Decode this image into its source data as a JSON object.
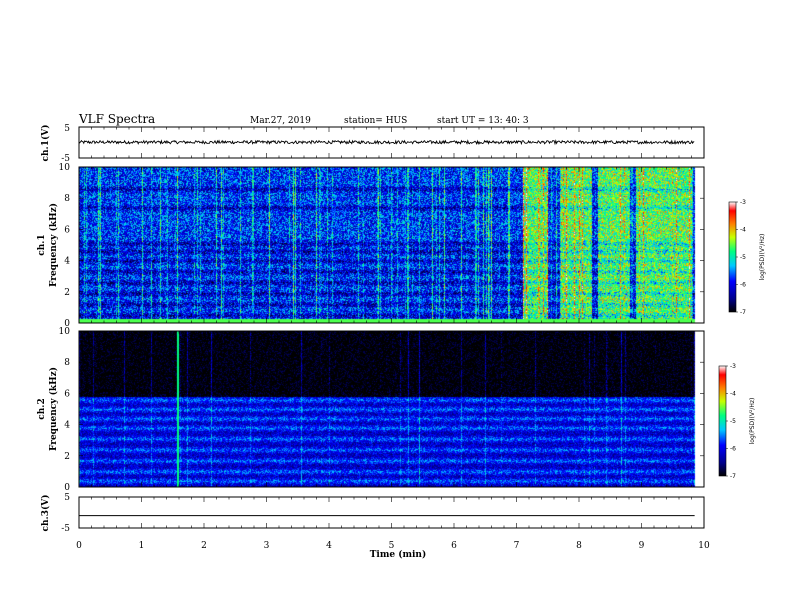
{
  "header": {
    "title": "VLF Spectra",
    "date": "Mar.27, 2019",
    "station": "station= HUS",
    "start": "start  UT =   13: 40: 3"
  },
  "colors": {
    "background": "#ffffff",
    "axes": "#000000",
    "spectrogram_floor": "#000008"
  },
  "chart_data": [
    {
      "type": "line",
      "panel": "ch.1 waveform",
      "ylabel": "ch.1(V)",
      "ylim": [
        -5,
        5
      ],
      "yticks": [
        -5,
        5
      ],
      "xlim": [
        0,
        10
      ],
      "x": [
        0,
        1,
        2,
        3,
        4,
        5,
        6,
        7,
        8,
        9,
        9.85
      ],
      "y": [
        0.1,
        0.1,
        0.1,
        0.1,
        0.1,
        0.1,
        0.1,
        0.1,
        0.1,
        0.1,
        0.1
      ],
      "note_band_amplitude": 0.5
    },
    {
      "type": "heatmap",
      "panel": "ch.1 spectrogram",
      "ylabel": "Frequency  (kHz)",
      "channel_label": "ch.1",
      "ylim": [
        0,
        10
      ],
      "yticks": [
        0,
        2,
        4,
        6,
        8,
        10
      ],
      "xlim": [
        0,
        10
      ],
      "data_extent_x": [
        0,
        9.85
      ],
      "colorbar": {
        "label": "log(PSD)(V²/Hz)",
        "range": [
          -7,
          -3
        ],
        "ticks": [
          -7,
          -6,
          -5,
          -4,
          -3
        ]
      },
      "horizontal_bands_khz": [
        0.5,
        1.2,
        1.9,
        2.6,
        3.3,
        4.0,
        4.6,
        5.1,
        7.4,
        8.6
      ],
      "high_activity_intervals_min": [
        [
          7.1,
          7.5
        ],
        [
          7.7,
          8.2
        ],
        [
          8.3,
          8.8
        ],
        [
          8.9,
          9.8
        ]
      ],
      "base_level": -5.8
    },
    {
      "type": "heatmap",
      "panel": "ch.2 spectrogram",
      "ylabel": "Frequency  (kHz)",
      "channel_label": "ch.2",
      "ylim": [
        0,
        10
      ],
      "yticks": [
        0,
        2,
        4,
        6,
        8,
        10
      ],
      "xlim": [
        0,
        10
      ],
      "data_extent_x": [
        0,
        9.85
      ],
      "colorbar": {
        "label": "log(PSD)(V²/Hz)",
        "range": [
          -7,
          -3
        ],
        "ticks": [
          -7,
          -6,
          -5,
          -4,
          -3
        ]
      },
      "horizontal_bands_khz": [
        0.4,
        1.0,
        1.7,
        2.4,
        3.1,
        3.8,
        4.4,
        5.0,
        5.6
      ],
      "noise_ceiling_khz": 5.8,
      "bright_sferic_time_min": 1.58,
      "base_level": -6.8
    },
    {
      "type": "line",
      "panel": "ch.3 waveform",
      "ylabel": "ch.3(V)",
      "ylim": [
        -5,
        5
      ],
      "yticks": [
        -5,
        5
      ],
      "xlim": [
        0,
        10
      ],
      "x": [
        0,
        9.85
      ],
      "y": [
        -1,
        -1
      ],
      "xlabel": "Time  (min)",
      "xticks": [
        0,
        1,
        2,
        3,
        4,
        5,
        6,
        7,
        8,
        9,
        10
      ]
    }
  ]
}
